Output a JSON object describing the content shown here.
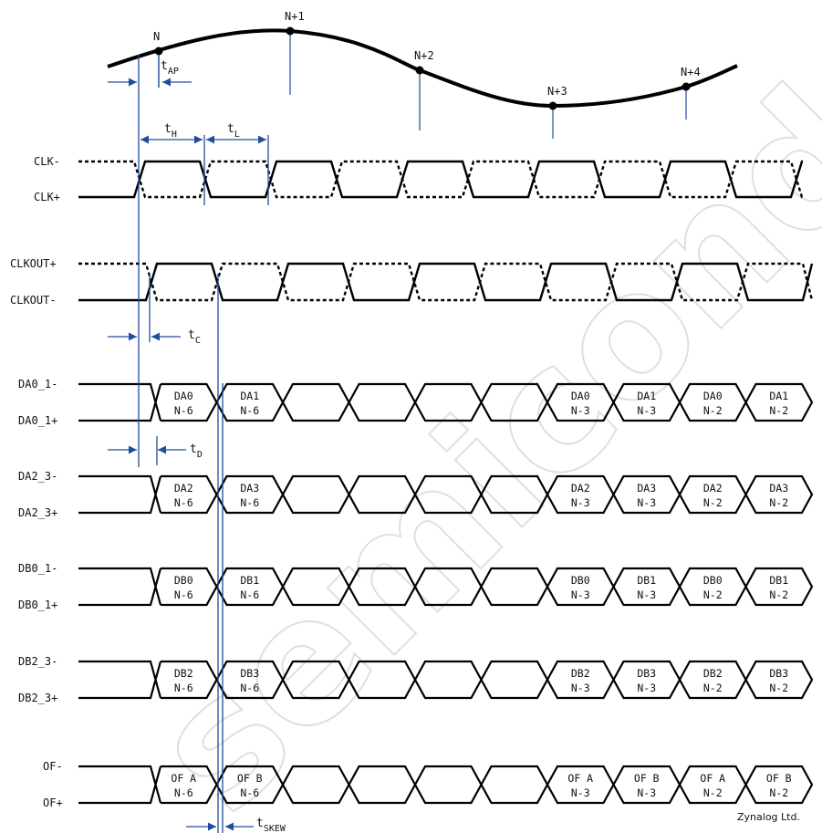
{
  "analog_samples": [
    {
      "label": "N"
    },
    {
      "label": "N+1"
    },
    {
      "label": "N+2"
    },
    {
      "label": "N+3"
    },
    {
      "label": "N+4"
    }
  ],
  "timing": {
    "tAP": {
      "main": "t",
      "sub": "AP"
    },
    "tH": {
      "main": "t",
      "sub": "H"
    },
    "tL": {
      "main": "t",
      "sub": "L"
    },
    "tC": {
      "main": "t",
      "sub": "C"
    },
    "tD": {
      "main": "t",
      "sub": "D"
    },
    "tSKEW": {
      "main": "t",
      "sub": "SKEW"
    }
  },
  "clock_signals": [
    {
      "name": "clk",
      "minus_label": "CLK-",
      "plus_label": "CLK+"
    },
    {
      "name": "clkout",
      "minus_label": "CLKOUT+",
      "plus_label": "CLKOUT-"
    }
  ],
  "buses": [
    {
      "name": "da0_1",
      "top_label": "DA0_1-",
      "bottom_label": "DA0_1+",
      "cells": [
        [
          "DA0",
          "N-6"
        ],
        [
          "DA1",
          "N-6"
        ],
        [
          "",
          ""
        ],
        [
          "",
          ""
        ],
        [
          "",
          ""
        ],
        [
          "",
          ""
        ],
        [
          "DA0",
          "N-3"
        ],
        [
          "DA1",
          "N-3"
        ],
        [
          "DA0",
          "N-2"
        ],
        [
          "DA1",
          "N-2"
        ]
      ]
    },
    {
      "name": "da2_3",
      "top_label": "DA2_3-",
      "bottom_label": "DA2_3+",
      "cells": [
        [
          "DA2",
          "N-6"
        ],
        [
          "DA3",
          "N-6"
        ],
        [
          "",
          ""
        ],
        [
          "",
          ""
        ],
        [
          "",
          ""
        ],
        [
          "",
          ""
        ],
        [
          "DA2",
          "N-3"
        ],
        [
          "DA3",
          "N-3"
        ],
        [
          "DA2",
          "N-2"
        ],
        [
          "DA3",
          "N-2"
        ]
      ]
    },
    {
      "name": "db0_1",
      "top_label": "DB0_1-",
      "bottom_label": "DB0_1+",
      "cells": [
        [
          "DB0",
          "N-6"
        ],
        [
          "DB1",
          "N-6"
        ],
        [
          "",
          ""
        ],
        [
          "",
          ""
        ],
        [
          "",
          ""
        ],
        [
          "",
          ""
        ],
        [
          "DB0",
          "N-3"
        ],
        [
          "DB1",
          "N-3"
        ],
        [
          "DB0",
          "N-2"
        ],
        [
          "DB1",
          "N-2"
        ]
      ]
    },
    {
      "name": "db2_3",
      "top_label": "DB2_3-",
      "bottom_label": "DB2_3+",
      "cells": [
        [
          "DB2",
          "N-6"
        ],
        [
          "DB3",
          "N-6"
        ],
        [
          "",
          ""
        ],
        [
          "",
          ""
        ],
        [
          "",
          ""
        ],
        [
          "",
          ""
        ],
        [
          "DB2",
          "N-3"
        ],
        [
          "DB3",
          "N-3"
        ],
        [
          "DB2",
          "N-2"
        ],
        [
          "DB3",
          "N-2"
        ]
      ]
    },
    {
      "name": "of",
      "top_label": "OF-",
      "bottom_label": "OF+",
      "cells": [
        [
          "OF A",
          "N-6"
        ],
        [
          "OF B",
          "N-6"
        ],
        [
          "",
          ""
        ],
        [
          "",
          ""
        ],
        [
          "",
          ""
        ],
        [
          "",
          ""
        ],
        [
          "OF A",
          "N-3"
        ],
        [
          "OF B",
          "N-3"
        ],
        [
          "OF A",
          "N-2"
        ],
        [
          "OF B",
          "N-2"
        ]
      ]
    }
  ],
  "colors": {
    "signal": "#000000",
    "annotation": "#1f4e9c",
    "watermark": "#cfd2d8"
  },
  "watermark": {
    "text": "semiconductor"
  },
  "credit": "Zynalog Ltd."
}
